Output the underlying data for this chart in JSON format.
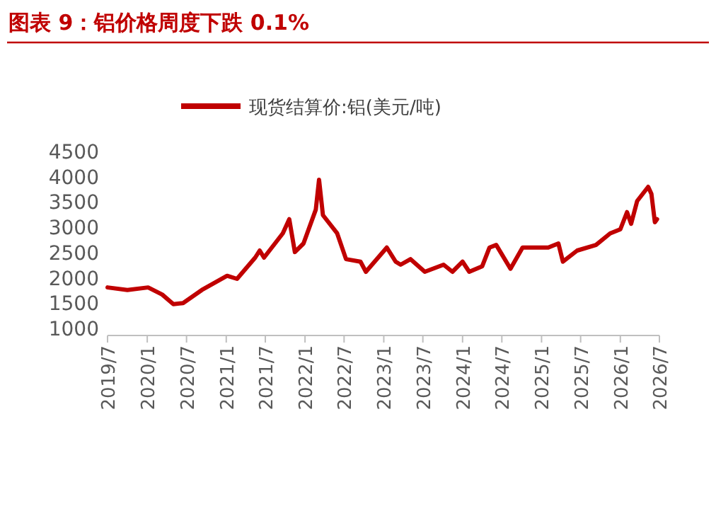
{
  "chart_data": {
    "type": "line",
    "title": "图表 9：铝价格周度下跌 0.1%",
    "x": [
      "2019-07-01",
      "2019-10-01",
      "2020-01-05",
      "2020-03-10",
      "2020-05-01",
      "2020-06-15",
      "2020-09-10",
      "2021-01-05",
      "2021-02-20",
      "2021-05-15",
      "2021-06-05",
      "2021-06-25",
      "2021-09-20",
      "2021-10-20",
      "2021-11-15",
      "2021-12-25",
      "2022-02-20",
      "2022-03-07",
      "2022-03-25",
      "2022-05-30",
      "2022-07-10",
      "2022-09-15",
      "2022-10-10",
      "2023-01-15",
      "2023-02-25",
      "2023-03-20",
      "2023-05-05",
      "2023-07-10",
      "2023-10-05",
      "2023-11-15",
      "2024-01-01",
      "2024-02-01",
      "2024-04-01",
      "2024-05-05",
      "2024-06-05",
      "2024-08-10",
      "2024-10-05",
      "2024-12-10",
      "2025-02-01",
      "2025-03-20",
      "2025-04-10",
      "2025-06-15",
      "2025-09-10",
      "2025-11-15",
      "2026-01-01",
      "2026-02-01",
      "2026-02-20",
      "2026-03-20",
      "2026-05-10",
      "2026-05-25",
      "2026-06-10",
      "2026-06-20"
    ],
    "series": [
      {
        "name": "现货结算价:铝(美元/吨)",
        "color": "#c00000",
        "values": [
          1810,
          1760,
          1810,
          1670,
          1480,
          1500,
          1760,
          2040,
          1980,
          2400,
          2540,
          2400,
          2880,
          3160,
          2510,
          2680,
          3350,
          3940,
          3240,
          2880,
          2370,
          2320,
          2120,
          2600,
          2320,
          2260,
          2370,
          2120,
          2260,
          2120,
          2320,
          2120,
          2230,
          2600,
          2650,
          2180,
          2600,
          2600,
          2600,
          2680,
          2320,
          2540,
          2650,
          2880,
          2960,
          3300,
          3070,
          3520,
          3800,
          3660,
          3100,
          3160
        ]
      }
    ],
    "xlim": [
      "2019-07-01",
      "2026-07-01"
    ],
    "xticks": [
      {
        "value": "2019-07",
        "label": "2019/7"
      },
      {
        "value": "2020-01",
        "label": "2020/1"
      },
      {
        "value": "2020-07",
        "label": "2020/7"
      },
      {
        "value": "2021-01",
        "label": "2021/1"
      },
      {
        "value": "2021-07",
        "label": "2021/7"
      },
      {
        "value": "2022-01",
        "label": "2022/1"
      },
      {
        "value": "2022-07",
        "label": "2022/7"
      },
      {
        "value": "2023-01",
        "label": "2023/1"
      },
      {
        "value": "2023-07",
        "label": "2023/7"
      },
      {
        "value": "2024-01",
        "label": "2024/1"
      },
      {
        "value": "2024-07",
        "label": "2024/7"
      },
      {
        "value": "2025-01",
        "label": "2025/1"
      },
      {
        "value": "2025-07",
        "label": "2025/7"
      },
      {
        "value": "2026-01",
        "label": "2026/1"
      },
      {
        "value": "2026-07",
        "label": "2026/7"
      }
    ],
    "ylim": [
      1000,
      4500
    ],
    "yticks": [
      1000,
      1500,
      2000,
      2500,
      3000,
      3500,
      4000,
      4500
    ],
    "legend": "top",
    "grid": false,
    "marker": "none",
    "line_style": "solid"
  }
}
